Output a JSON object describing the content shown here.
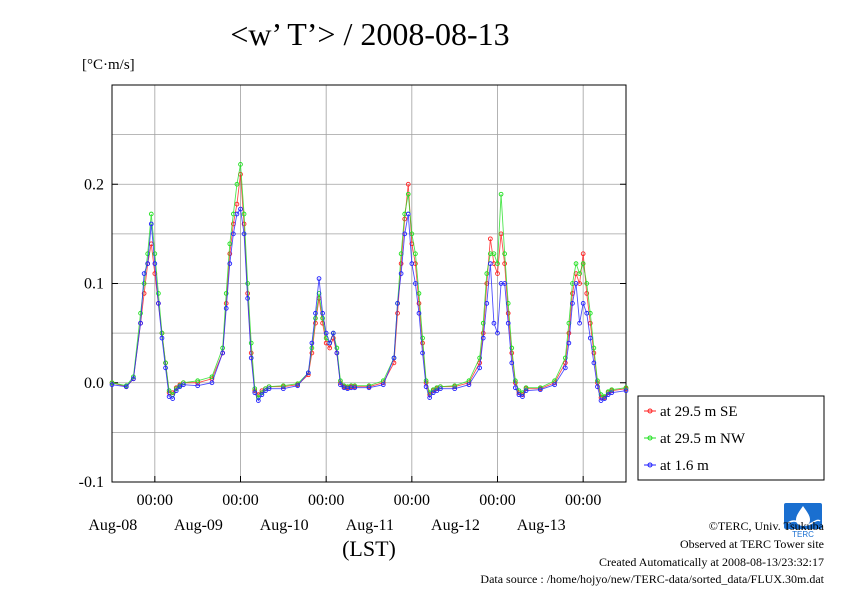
{
  "chart_data": {
    "type": "line",
    "title": "<w’ T’> / 2008-08-13",
    "yunit": "[°C·m/s]",
    "xlabel": "(LST)",
    "ylim": [
      -0.1,
      0.3
    ],
    "yticks": [
      -0.1,
      0.0,
      0.1,
      0.2
    ],
    "ytick_labels": [
      "-0.1",
      "0.0",
      "0.1",
      "0.2"
    ],
    "xlim_hours": [
      0,
      144
    ],
    "xticks": [
      {
        "time": "00:00",
        "date": "Aug-08"
      },
      {
        "time": "00:00",
        "date": "Aug-09"
      },
      {
        "time": "00:00",
        "date": "Aug-10"
      },
      {
        "time": "00:00",
        "date": "Aug-11"
      },
      {
        "time": "00:00",
        "date": "Aug-12"
      },
      {
        "time": "00:00",
        "date": "Aug-13"
      }
    ],
    "grid": true,
    "legend_position": "right",
    "series": [
      {
        "name": "at 29.5 m SE",
        "color": "#ff2020",
        "hours": [
          0,
          4,
          6,
          8,
          9,
          10,
          11,
          12,
          13,
          14,
          15,
          16,
          17,
          18,
          19,
          20,
          24,
          28,
          31,
          32,
          33,
          34,
          35,
          36,
          37,
          38,
          39,
          40,
          41,
          42,
          43,
          44,
          48,
          52,
          55,
          56,
          57,
          58,
          59,
          60,
          61,
          62,
          63,
          64,
          65,
          66,
          67,
          68,
          72,
          76,
          79,
          80,
          81,
          82,
          83,
          84,
          85,
          86,
          87,
          88,
          89,
          90,
          91,
          92,
          96,
          100,
          103,
          104,
          105,
          106,
          107,
          108,
          109,
          110,
          111,
          112,
          113,
          114,
          115,
          116,
          120,
          124,
          127,
          128,
          129,
          130,
          131,
          132,
          133,
          134,
          135,
          136,
          137,
          138,
          139,
          140,
          144
        ],
        "values": [
          0.0,
          -0.004,
          0.004,
          0.06,
          0.09,
          0.12,
          0.14,
          0.11,
          0.08,
          0.05,
          0.02,
          -0.01,
          -0.01,
          -0.005,
          -0.002,
          0.0,
          0.0,
          0.004,
          0.03,
          0.08,
          0.13,
          0.16,
          0.18,
          0.21,
          0.16,
          0.09,
          0.03,
          -0.008,
          -0.012,
          -0.008,
          -0.006,
          -0.004,
          -0.004,
          -0.002,
          0.008,
          0.03,
          0.06,
          0.085,
          0.06,
          0.04,
          0.035,
          0.045,
          0.03,
          0.0,
          -0.004,
          -0.005,
          -0.004,
          -0.004,
          -0.004,
          0.0,
          0.02,
          0.07,
          0.12,
          0.165,
          0.2,
          0.14,
          0.12,
          0.08,
          0.04,
          0.0,
          -0.012,
          -0.008,
          -0.006,
          -0.004,
          -0.004,
          0.0,
          0.02,
          0.05,
          0.1,
          0.145,
          0.12,
          0.11,
          0.15,
          0.12,
          0.07,
          0.03,
          0.0,
          -0.01,
          -0.012,
          -0.006,
          -0.006,
          0.0,
          0.02,
          0.05,
          0.09,
          0.11,
          0.1,
          0.13,
          0.09,
          0.06,
          0.03,
          0.0,
          -0.015,
          -0.015,
          -0.01,
          -0.008,
          -0.006
        ]
      },
      {
        "name": "at 29.5 m NW",
        "color": "#20e020",
        "hours": [
          0,
          4,
          6,
          8,
          9,
          10,
          11,
          12,
          13,
          14,
          15,
          16,
          17,
          18,
          19,
          20,
          24,
          28,
          31,
          32,
          33,
          34,
          35,
          36,
          37,
          38,
          39,
          40,
          41,
          42,
          43,
          44,
          48,
          52,
          55,
          56,
          57,
          58,
          59,
          60,
          61,
          62,
          63,
          64,
          65,
          66,
          67,
          68,
          72,
          76,
          79,
          80,
          81,
          82,
          83,
          84,
          85,
          86,
          87,
          88,
          89,
          90,
          91,
          92,
          96,
          100,
          103,
          104,
          105,
          106,
          107,
          108,
          109,
          110,
          111,
          112,
          113,
          114,
          115,
          116,
          120,
          124,
          127,
          128,
          129,
          130,
          131,
          132,
          133,
          134,
          135,
          136,
          137,
          138,
          139,
          140,
          144
        ],
        "values": [
          0.0,
          -0.003,
          0.006,
          0.07,
          0.1,
          0.13,
          0.17,
          0.13,
          0.09,
          0.05,
          0.02,
          -0.008,
          -0.012,
          -0.006,
          -0.003,
          0.0,
          0.002,
          0.006,
          0.035,
          0.09,
          0.14,
          0.17,
          0.2,
          0.22,
          0.17,
          0.1,
          0.04,
          -0.006,
          -0.015,
          -0.01,
          -0.006,
          -0.004,
          -0.003,
          -0.001,
          0.01,
          0.035,
          0.065,
          0.09,
          0.065,
          0.045,
          0.04,
          0.05,
          0.035,
          0.002,
          -0.003,
          -0.004,
          -0.003,
          -0.003,
          -0.003,
          0.002,
          0.025,
          0.08,
          0.13,
          0.17,
          0.19,
          0.15,
          0.13,
          0.09,
          0.045,
          0.002,
          -0.01,
          -0.007,
          -0.005,
          -0.004,
          -0.003,
          0.002,
          0.025,
          0.06,
          0.11,
          0.13,
          0.13,
          0.12,
          0.19,
          0.13,
          0.08,
          0.035,
          0.002,
          -0.008,
          -0.01,
          -0.005,
          -0.005,
          0.002,
          0.025,
          0.06,
          0.1,
          0.12,
          0.11,
          0.12,
          0.1,
          0.07,
          0.035,
          0.002,
          -0.012,
          -0.014,
          -0.009,
          -0.007,
          -0.005
        ]
      },
      {
        "name": "at 1.6 m",
        "color": "#2020ff",
        "hours": [
          0,
          4,
          6,
          8,
          9,
          10,
          11,
          12,
          13,
          14,
          15,
          16,
          17,
          18,
          19,
          20,
          24,
          28,
          31,
          32,
          33,
          34,
          35,
          36,
          37,
          38,
          39,
          40,
          41,
          42,
          43,
          44,
          48,
          52,
          55,
          56,
          57,
          58,
          59,
          60,
          61,
          62,
          63,
          64,
          65,
          66,
          67,
          68,
          72,
          76,
          79,
          80,
          81,
          82,
          83,
          84,
          85,
          86,
          87,
          88,
          89,
          90,
          91,
          92,
          96,
          100,
          103,
          104,
          105,
          106,
          107,
          108,
          109,
          110,
          111,
          112,
          113,
          114,
          115,
          116,
          120,
          124,
          127,
          128,
          129,
          130,
          131,
          132,
          133,
          134,
          135,
          136,
          137,
          138,
          139,
          140,
          144
        ],
        "values": [
          -0.002,
          -0.004,
          0.004,
          0.06,
          0.11,
          0.12,
          0.16,
          0.12,
          0.08,
          0.045,
          0.015,
          -0.014,
          -0.016,
          -0.008,
          -0.004,
          -0.002,
          -0.003,
          0.0,
          0.03,
          0.075,
          0.12,
          0.15,
          0.17,
          0.175,
          0.15,
          0.085,
          0.025,
          -0.01,
          -0.018,
          -0.012,
          -0.008,
          -0.006,
          -0.006,
          -0.003,
          0.01,
          0.04,
          0.07,
          0.105,
          0.07,
          0.05,
          0.04,
          0.05,
          0.03,
          -0.002,
          -0.005,
          -0.006,
          -0.005,
          -0.005,
          -0.005,
          -0.002,
          0.025,
          0.08,
          0.11,
          0.15,
          0.17,
          0.12,
          0.1,
          0.07,
          0.03,
          -0.004,
          -0.015,
          -0.01,
          -0.008,
          -0.006,
          -0.006,
          -0.002,
          0.015,
          0.045,
          0.08,
          0.12,
          0.06,
          0.05,
          0.1,
          0.1,
          0.06,
          0.02,
          -0.005,
          -0.012,
          -0.014,
          -0.008,
          -0.007,
          -0.002,
          0.015,
          0.04,
          0.08,
          0.1,
          0.06,
          0.08,
          0.07,
          0.045,
          0.02,
          -0.004,
          -0.018,
          -0.016,
          -0.012,
          -0.01,
          -0.008
        ]
      }
    ]
  },
  "footer": {
    "copyright": "©TERC, Univ. Tsukuba",
    "observed": "Observed at TERC Tower site",
    "created": "Created Automatically at 2008-08-13/23:32:17",
    "source": "Data source : /home/hojyo/new/TERC-data/sorted_data/FLUX.30m.dat"
  },
  "logo": {
    "text": "TERC",
    "color": "#1a6fd0"
  }
}
